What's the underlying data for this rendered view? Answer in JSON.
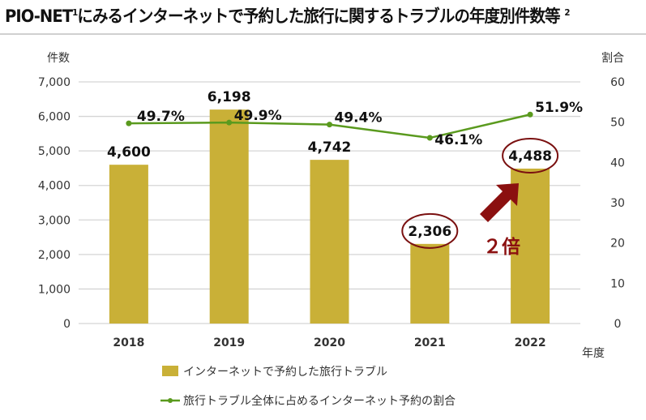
{
  "title": "PIO-NETにみるインターネットで予約した旅行に関するトラブルの年度別件数等",
  "title_sup1": "1",
  "title_sup2": "2",
  "chart_data": {
    "type": "bar",
    "categories": [
      "2018",
      "2019",
      "2020",
      "2021",
      "2022"
    ],
    "series": [
      {
        "name": "インターネットで予約した旅行トラブル",
        "type": "bar",
        "axis": "left",
        "values": [
          4600,
          6198,
          4742,
          2306,
          4488
        ],
        "labels": [
          "4,600",
          "6,198",
          "4,742",
          "2,306",
          "4,488"
        ],
        "color": "#c9b037"
      },
      {
        "name": "旅行トラブル全体に占めるインターネット予約の割合",
        "type": "line",
        "axis": "right",
        "values": [
          49.7,
          49.9,
          49.4,
          46.1,
          51.9
        ],
        "labels": [
          "49.7%",
          "49.9%",
          "49.4%",
          "46.1%",
          "51.9%"
        ],
        "color": "#5a9a1e"
      }
    ],
    "ylabel": "件数",
    "y2label": "割合",
    "xlabel": "年度",
    "ylim": [
      0,
      7000
    ],
    "y2lim": [
      0,
      60
    ],
    "yticks": [
      "0",
      "1,000",
      "2,000",
      "3,000",
      "4,000",
      "5,000",
      "6,000",
      "7,000"
    ],
    "y2ticks": [
      "0",
      "10",
      "20",
      "30",
      "40",
      "50",
      "60"
    ],
    "grid": true,
    "legend": "bottom",
    "annotation": {
      "text": "２倍",
      "color": "#8b1010",
      "highlighted": [
        "2021",
        "2022"
      ]
    }
  }
}
